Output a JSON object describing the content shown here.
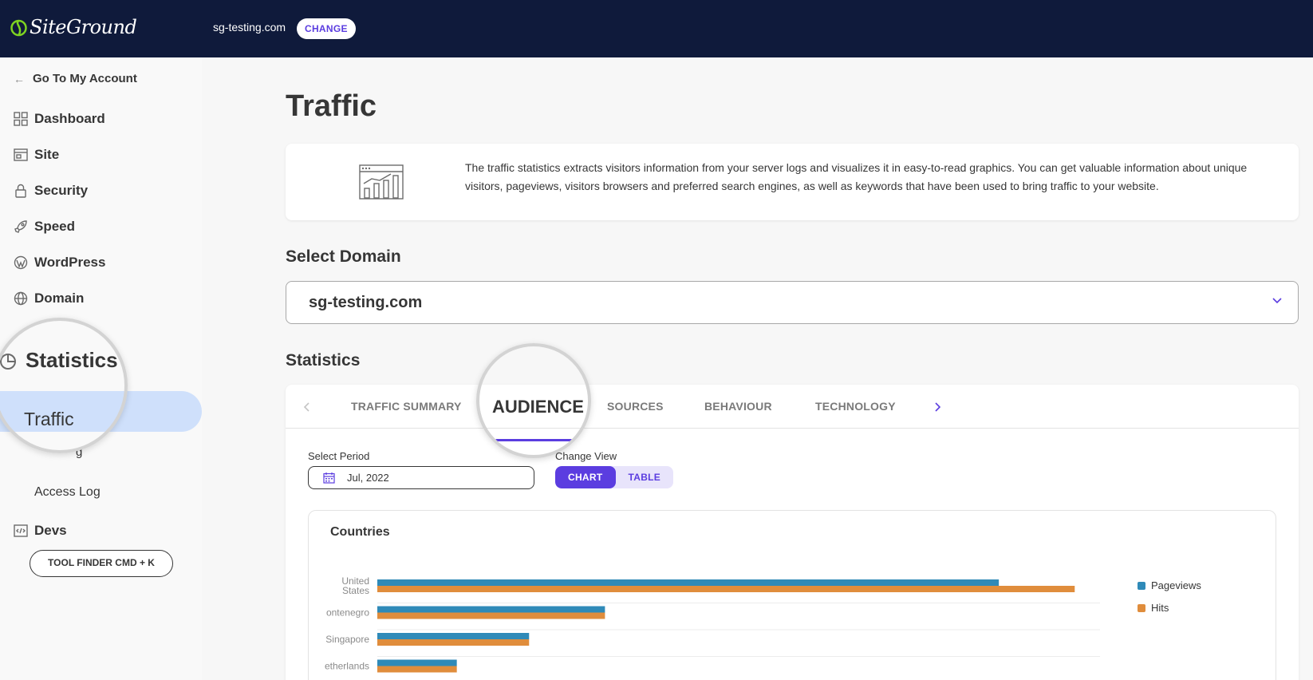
{
  "header": {
    "logo_text": "SiteGround",
    "domain": "sg-testing.com",
    "change_label": "CHANGE"
  },
  "sidebar": {
    "back_label": "Go To My Account",
    "items": [
      {
        "label": "Dashboard",
        "icon": "grid-icon"
      },
      {
        "label": "Site",
        "icon": "site-icon"
      },
      {
        "label": "Security",
        "icon": "lock-icon"
      },
      {
        "label": "Speed",
        "icon": "rocket-icon"
      },
      {
        "label": "WordPress",
        "icon": "wordpress-icon"
      },
      {
        "label": "Domain",
        "icon": "globe-icon"
      }
    ],
    "statistics_label": "Statistics",
    "traffic_label": "Traffic",
    "hidden_sub_label": "g",
    "access_log_label": "Access Log",
    "devs_label": "Devs",
    "tool_finder_label": "TOOL FINDER CMD + K"
  },
  "main": {
    "title": "Traffic",
    "info_text": "The traffic statistics extracts visitors information from your server logs and visualizes it in easy-to-read graphics. You can get valuable information about unique visitors, pageviews, visitors browsers and preferred search engines, as well as keywords that have been used to bring traffic to your website.",
    "select_domain_title": "Select Domain",
    "selected_domain": "sg-testing.com",
    "statistics_title": "Statistics",
    "tabs": [
      "TRAFFIC SUMMARY",
      "AUDIENCE",
      "SOURCES",
      "BEHAVIOUR",
      "TECHNOLOGY"
    ],
    "active_tab": "AUDIENCE",
    "select_period_label": "Select Period",
    "period_value": "Jul, 2022",
    "change_view_label": "Change View",
    "view_chart_label": "CHART",
    "view_table_label": "TABLE",
    "chart_card_title": "Countries"
  },
  "colors": {
    "accent": "#5b3de0",
    "topbar": "#0f1a3b",
    "pageviews": "#2f8ab8",
    "hits": "#e08d3c",
    "sidebar_active": "#cfe0fb"
  },
  "chart_data": {
    "type": "bar",
    "orientation": "horizontal",
    "categories": [
      "United States",
      "Montenegro",
      "Singapore",
      "Netherlands"
    ],
    "category_labels": [
      [
        "United",
        "States"
      ],
      [
        "ontenegro"
      ],
      [
        "Singapore"
      ],
      [
        "etherlands"
      ]
    ],
    "series": [
      {
        "name": "Pageviews",
        "color": "#2f8ab8",
        "values": [
          86,
          31.5,
          21,
          11
        ]
      },
      {
        "name": "Hits",
        "color": "#e08d3c",
        "values": [
          96.5,
          31.5,
          21,
          11
        ]
      }
    ],
    "xlim": [
      0,
      100
    ],
    "grid": true,
    "legend": "right"
  }
}
